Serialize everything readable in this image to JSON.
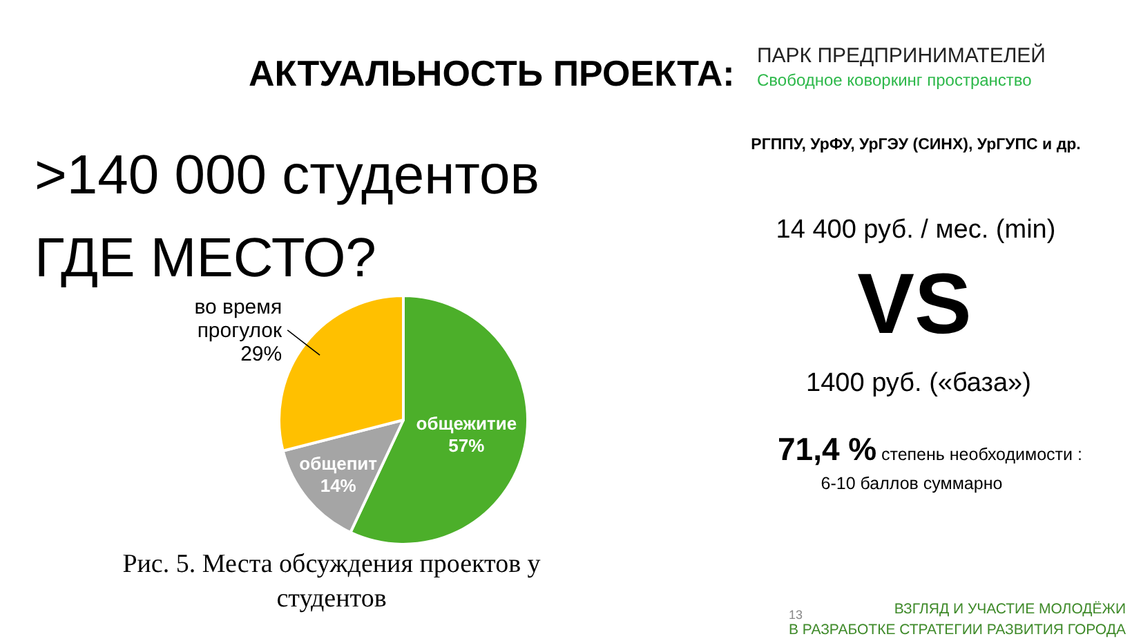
{
  "chart_data": {
    "type": "pie",
    "title": "АКТУАЛЬНОСТЬ ПРОЕКТА:",
    "subtitle": "ПАРК ПРЕДПРИНИМАТЕЛЕЙ",
    "categories": [
      "общежитие",
      "общепит",
      "во время прогулок"
    ],
    "values": [
      57,
      14,
      29
    ],
    "value_labels": [
      "57%",
      "14%",
      "29%"
    ],
    "colors": [
      "#4caf2a",
      "#a5a5a5",
      "#ffc000"
    ],
    "annotations": [
      "Свободное коворкинг пространство",
      ">140 000 студентов",
      "ГДЕ МЕСТО?",
      "РГППУ, УрФУ, УрГЭУ (СИНХ), УрГУПС и др.",
      "14 400 руб. / мес. (min)",
      "VS",
      "1400 руб. («база»)",
      "71,4 %",
      "степень необходимости :",
      "6-10 баллов суммарно",
      "Рис. 5. Места обсуждения проектов у студентов",
      "13",
      "ВЗГЛЯД И УЧАСТИЕ МОЛОДЁЖИ",
      "В РАЗРАБОТКЕ СТРАТЕГИИ РАЗВИТИЯ ГОРОДА"
    ]
  }
}
